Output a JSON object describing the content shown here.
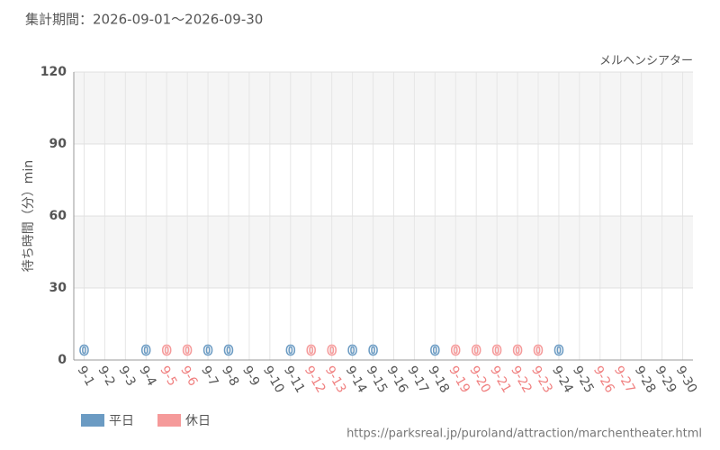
{
  "chart_data": {
    "type": "bar",
    "title": "集計期間：2026-09-01〜2026-09-30",
    "subtitle": "メルヘンシアター",
    "y_label": "待ち時間（分）min",
    "footer": "https://parksreal.jp/puroland/attraction/marchentheater.html",
    "categories": [
      "9-1",
      "9-2",
      "9-3",
      "9-4",
      "9-5",
      "9-6",
      "9-7",
      "9-8",
      "9-9",
      "9-10",
      "9-11",
      "9-12",
      "9-13",
      "9-14",
      "9-15",
      "9-16",
      "9-17",
      "9-18",
      "9-19",
      "9-20",
      "9-21",
      "9-22",
      "9-23",
      "9-24",
      "9-25",
      "9-26",
      "9-27",
      "9-28",
      "9-29",
      "9-30"
    ],
    "category_colors": [
      "#555",
      "#555",
      "#555",
      "#555",
      "#f08080",
      "#f08080",
      "#555",
      "#555",
      "#555",
      "#555",
      "#555",
      "#f08080",
      "#f08080",
      "#555",
      "#555",
      "#555",
      "#555",
      "#555",
      "#f08080",
      "#f08080",
      "#f08080",
      "#f08080",
      "#f08080",
      "#555",
      "#555",
      "#f08080",
      "#f08080",
      "#555",
      "#555",
      "#555"
    ],
    "series": [
      {
        "name": "平日",
        "color": "#6b9bc3",
        "values": [
          0,
          null,
          null,
          0,
          null,
          null,
          0,
          0,
          null,
          null,
          0,
          null,
          null,
          0,
          0,
          null,
          null,
          0,
          null,
          null,
          null,
          null,
          null,
          0,
          null,
          null,
          null,
          null,
          null,
          null
        ]
      },
      {
        "name": "休日",
        "color": "#f59a9a",
        "values": [
          null,
          null,
          null,
          null,
          0,
          0,
          null,
          null,
          null,
          null,
          null,
          0,
          0,
          null,
          null,
          null,
          null,
          null,
          0,
          0,
          0,
          0,
          0,
          null,
          null,
          null,
          null,
          null,
          null,
          null
        ]
      }
    ],
    "ylim": [
      0,
      120
    ],
    "yticks": [
      0,
      30,
      60,
      90,
      120
    ],
    "grid": true
  }
}
